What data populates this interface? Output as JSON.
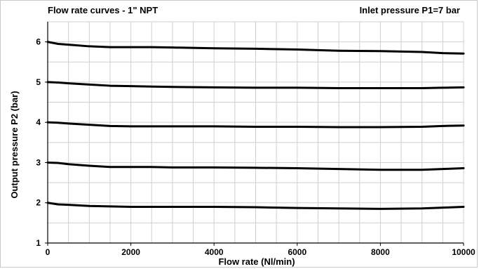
{
  "chart_data": {
    "type": "line",
    "title": "Flow rate curves - 1\" NPT",
    "subtitle": "Inlet pressure P1=7 bar",
    "xlabel": "Flow rate (Nl/min)",
    "ylabel": "Output pressure P2 (bar)",
    "xlim": [
      0,
      10000
    ],
    "ylim": [
      1,
      6.5
    ],
    "x_ticks": [
      0,
      2000,
      4000,
      6000,
      8000,
      10000
    ],
    "y_ticks": [
      1,
      2,
      3,
      4,
      5,
      6
    ],
    "x_minor_step": 500,
    "y_minor_step": 0.5,
    "grid": true,
    "line_color": "#000000",
    "grid_color": "#cfcfcf",
    "x": [
      0,
      250,
      500,
      1000,
      1500,
      2000,
      2500,
      3000,
      4000,
      5000,
      6000,
      7000,
      8000,
      9000,
      9500,
      10000
    ],
    "series": [
      {
        "values": [
          6.0,
          5.95,
          5.93,
          5.89,
          5.87,
          5.87,
          5.87,
          5.86,
          5.84,
          5.83,
          5.81,
          5.78,
          5.77,
          5.75,
          5.72,
          5.71
        ]
      },
      {
        "values": [
          5.0,
          4.99,
          4.97,
          4.94,
          4.91,
          4.9,
          4.89,
          4.88,
          4.87,
          4.86,
          4.86,
          4.85,
          4.85,
          4.85,
          4.86,
          4.87
        ]
      },
      {
        "values": [
          4.0,
          3.99,
          3.97,
          3.94,
          3.91,
          3.9,
          3.9,
          3.9,
          3.9,
          3.89,
          3.89,
          3.88,
          3.88,
          3.89,
          3.91,
          3.92
        ]
      },
      {
        "values": [
          3.0,
          2.99,
          2.96,
          2.92,
          2.89,
          2.89,
          2.89,
          2.88,
          2.88,
          2.87,
          2.86,
          2.84,
          2.82,
          2.82,
          2.84,
          2.86
        ]
      },
      {
        "values": [
          2.0,
          1.96,
          1.95,
          1.92,
          1.91,
          1.9,
          1.9,
          1.9,
          1.9,
          1.89,
          1.87,
          1.86,
          1.85,
          1.86,
          1.88,
          1.9
        ]
      }
    ]
  }
}
